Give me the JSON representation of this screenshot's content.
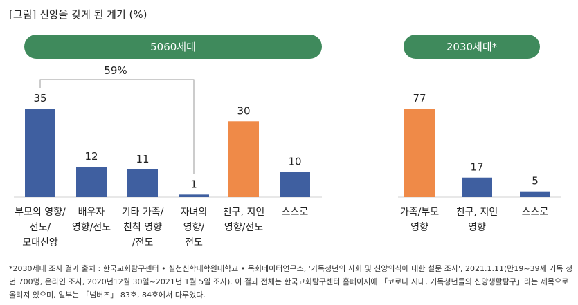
{
  "title": "[그림] 신앙을 갖게 된 계기 (%)",
  "footnote": "*2030세대 조사 결과 출처 : 한국교회탐구센터 • 실천신학대학원대학교 • 목회데이터연구소, '기독청년의 사회 및 신앙의식에 대한 설문 조사', 2021.1.11(만19~39세 기독 청년 700명, 온라인 조사, 2020년12월 30일~2021년 1월 5일 조사). 이 결과 전체는 한국교회탐구센터 홈페이지에 「코로나 시대, 기독청년들의 신앙생활탐구」라는 제목으로 올려져 있으며, 일부는 「넘버즈」 83호, 84호에서 다루었다.",
  "colors": {
    "blue": "#3f5fa0",
    "orange": "#ef8a48",
    "green": "#3f8a5c"
  },
  "chart_data": [
    {
      "type": "bar",
      "title": "5060세대",
      "categories": [
        "부모의 영향/\n전도/\n모태신앙",
        "배우자\n영향/전도",
        "기타 가족/\n친척 영향\n/전도",
        "자녀의\n영향/\n전도",
        "친구, 지인\n영향/전도",
        "스스로"
      ],
      "values": [
        35,
        12,
        11,
        1,
        30,
        10
      ],
      "highlight": [
        false,
        false,
        false,
        false,
        true,
        false
      ],
      "annotation": "59%",
      "ylim": [
        0,
        35
      ]
    },
    {
      "type": "bar",
      "title": "2030세대*",
      "categories": [
        "가족/부모\n영향",
        "친구, 지인\n영향",
        "스스로"
      ],
      "values": [
        77,
        17,
        5
      ],
      "highlight": [
        true,
        false,
        false
      ],
      "ylim": [
        0,
        77
      ]
    }
  ]
}
